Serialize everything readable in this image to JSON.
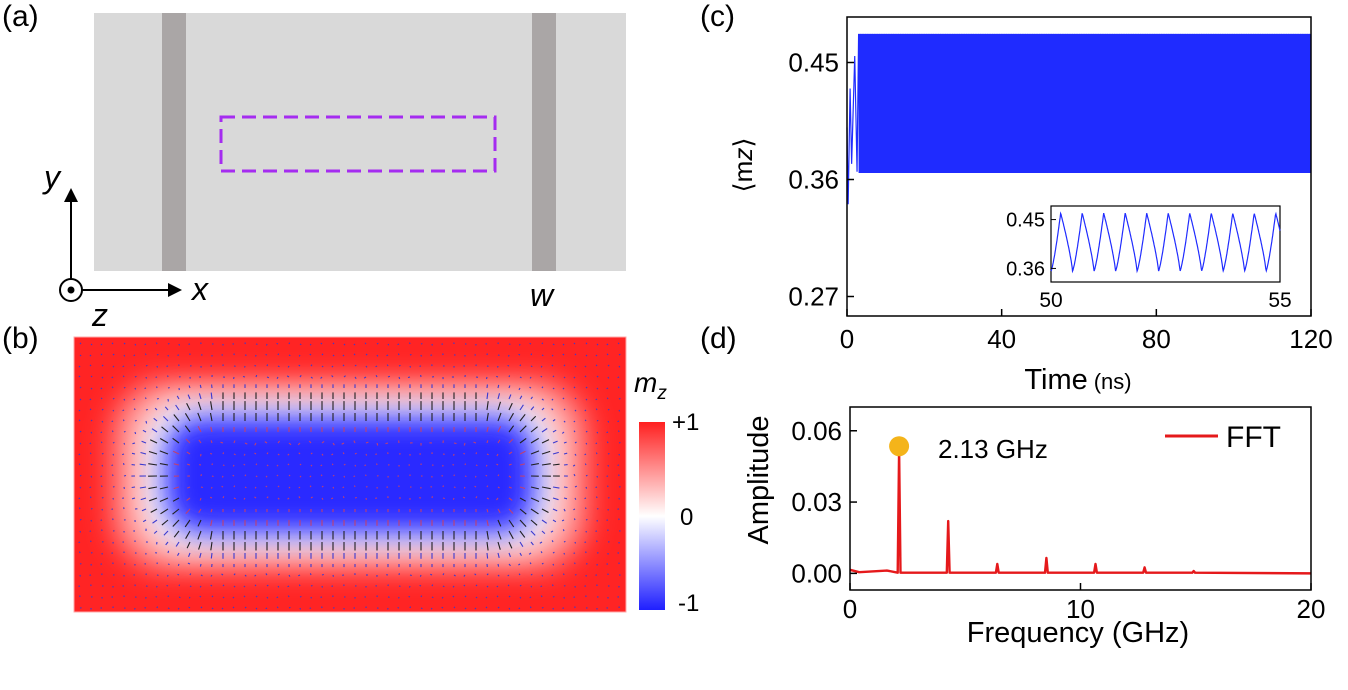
{
  "panels": {
    "a": {
      "label": "(a)",
      "axis_y": "y",
      "axis_x": "x",
      "axis_z": "z",
      "width_label": "w",
      "colors": {
        "film": "#d9d9d9",
        "electrode": "#aaa6a6",
        "box": "#a52cf0"
      }
    },
    "b": {
      "label": "(b)",
      "colorbar_title": "m",
      "colorbar_sub": "z",
      "colorbar_ticks": [
        "+1",
        "0",
        "-1"
      ],
      "colors": {
        "high": "#ff2020",
        "mid": "#ffffff",
        "low": "#1f1fff"
      }
    },
    "c": {
      "label": "(c)"
    },
    "d": {
      "label": "(d)"
    }
  },
  "chart_data": [
    {
      "id": "c",
      "type": "line",
      "title": "",
      "xlabel": "Time",
      "xlabel_unit": "(ns)",
      "ylabel": "⟨m",
      "ylabel_sub": "z",
      "ylabel_close": "⟩",
      "xlim": [
        0,
        120
      ],
      "ylim": [
        0.255,
        0.485
      ],
      "xticks": [
        0,
        40,
        80,
        120
      ],
      "xtick_labels": [
        "0",
        "40",
        "80",
        "120"
      ],
      "yticks": [
        0.27,
        0.36,
        0.45
      ],
      "ytick_labels": [
        "0.27",
        "0.36",
        "0.45"
      ],
      "series": [
        {
          "name": "<mz>",
          "color": "#1f2bff",
          "oscillation_min": 0.365,
          "oscillation_max": 0.472,
          "start_value": 0.4,
          "transient_min": 0.341
        }
      ],
      "inset": {
        "xlim": [
          50,
          55
        ],
        "ylim": [
          0.335,
          0.475
        ],
        "xtick_labels": [
          "50",
          "55"
        ],
        "ytick_labels": [
          "0.45",
          "0.36"
        ],
        "yticks": [
          0.45,
          0.36
        ],
        "oscillation_min": 0.355,
        "oscillation_max": 0.462,
        "frequency_ghz": 2.13
      }
    },
    {
      "id": "d",
      "type": "line",
      "title": "",
      "xlabel": "Frequency (GHz)",
      "ylabel": "Amplitude",
      "xlim": [
        0,
        20
      ],
      "ylim": [
        -0.007,
        0.07
      ],
      "xticks": [
        0,
        10,
        20
      ],
      "xtick_labels": [
        "0",
        "10",
        "20"
      ],
      "yticks": [
        0.0,
        0.03,
        0.06
      ],
      "ytick_labels": [
        "0.00",
        "0.03",
        "0.06"
      ],
      "legend": {
        "label": "FFT",
        "position": "top-right"
      },
      "peaks": [
        {
          "x": 2.13,
          "y": 0.052
        },
        {
          "x": 4.26,
          "y": 0.022
        },
        {
          "x": 6.39,
          "y": 0.004
        },
        {
          "x": 8.52,
          "y": 0.0065
        },
        {
          "x": 10.65,
          "y": 0.004
        },
        {
          "x": 12.78,
          "y": 0.0025
        },
        {
          "x": 14.91,
          "y": 0.001
        }
      ],
      "marker": {
        "x": 2.13,
        "y": 0.0535,
        "label": "2.13 GHz",
        "color": "#f4b41a"
      },
      "series": [
        {
          "name": "FFT",
          "color": "#e5191b"
        }
      ]
    }
  ]
}
